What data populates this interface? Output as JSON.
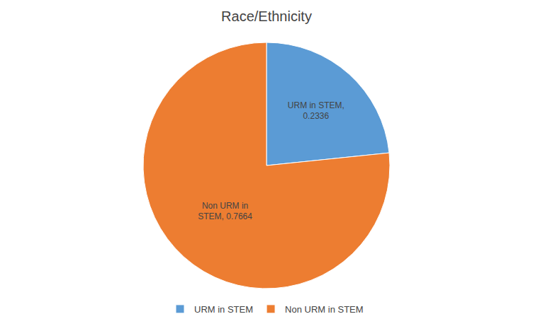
{
  "chart_data": {
    "type": "pie",
    "title": "Race/Ethnicity",
    "categories": [
      "URM in STEM",
      "Non URM in STEM"
    ],
    "values": [
      0.2336,
      0.7664
    ],
    "value_labels": [
      "URM in STEM,\n0.2336",
      "Non URM in\nSTEM, 0.7664"
    ],
    "colors": [
      "#5B9BD5",
      "#ED7D31"
    ],
    "data_labels": true,
    "legend": "bottom"
  }
}
